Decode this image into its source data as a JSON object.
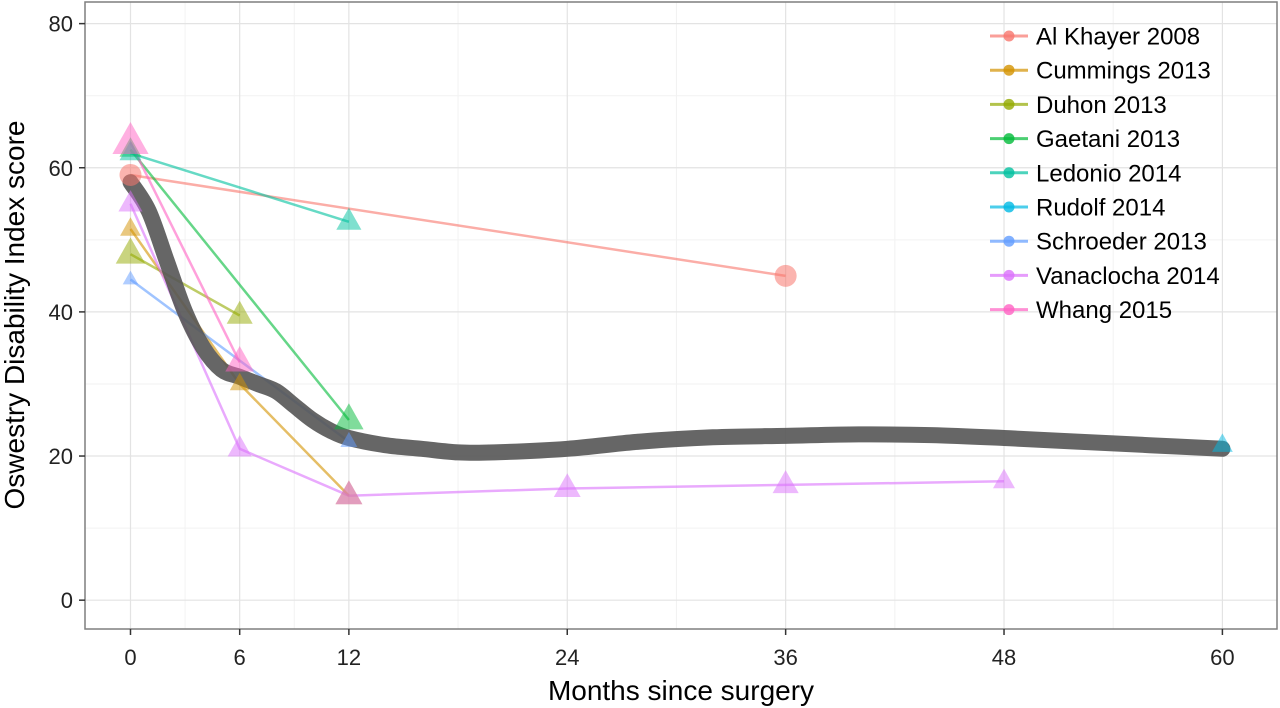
{
  "chart_data": {
    "type": "line",
    "title": "",
    "xlabel": "Months since surgery",
    "ylabel": "Oswestry Disability Index score",
    "xlim": [
      -2.5,
      63
    ],
    "ylim": [
      -4,
      83
    ],
    "x_ticks": [
      0,
      6,
      12,
      24,
      36,
      48,
      60
    ],
    "y_ticks": [
      0,
      20,
      40,
      60,
      80
    ],
    "grid": true,
    "legend_position": "top-right",
    "series": [
      {
        "name": "Al Khayer 2008",
        "color": "#f8766d",
        "marker": "circle",
        "points": [
          {
            "x": 0,
            "y": 59,
            "n": 1.0
          },
          {
            "x": 36,
            "y": 45,
            "n": 1.0
          }
        ]
      },
      {
        "name": "Cummings 2013",
        "color": "#d39200",
        "marker": "triangle",
        "points": [
          {
            "x": 0,
            "y": 51.5,
            "n": 0.9
          },
          {
            "x": 6,
            "y": 30,
            "n": 0.8
          },
          {
            "x": 12,
            "y": 14.5,
            "n": 1.5
          }
        ]
      },
      {
        "name": "Duhon 2013",
        "color": "#93aa00",
        "marker": "triangle",
        "points": [
          {
            "x": 0,
            "y": 48,
            "n": 1.8
          },
          {
            "x": 6,
            "y": 39.5,
            "n": 1.4
          }
        ]
      },
      {
        "name": "Gaetani 2013",
        "color": "#00ba38",
        "marker": "triangle",
        "points": [
          {
            "x": 0,
            "y": 62.5,
            "n": 1.0
          },
          {
            "x": 12,
            "y": 25,
            "n": 1.8
          }
        ]
      },
      {
        "name": "Ledonio 2014",
        "color": "#00c19f",
        "marker": "triangle",
        "points": [
          {
            "x": 0,
            "y": 62,
            "n": 1.0
          },
          {
            "x": 12,
            "y": 52.5,
            "n": 1.3
          }
        ]
      },
      {
        "name": "Rudolf 2014",
        "color": "#00b9e3",
        "marker": "triangle",
        "points": [
          {
            "x": 60,
            "y": 21.5,
            "n": 0.9
          }
        ]
      },
      {
        "name": "Schroeder 2013",
        "color": "#619cff",
        "marker": "triangle",
        "points": [
          {
            "x": 0,
            "y": 44.5,
            "n": 0.5
          },
          {
            "x": 12,
            "y": 22,
            "n": 0.6
          }
        ]
      },
      {
        "name": "Vanaclocha 2014",
        "color": "#db72fb",
        "marker": "triangle",
        "points": [
          {
            "x": 0,
            "y": 55,
            "n": 1.2
          },
          {
            "x": 6,
            "y": 21,
            "n": 1.2
          },
          {
            "x": 12,
            "y": 14.5,
            "n": 1.5
          },
          {
            "x": 24,
            "y": 15.5,
            "n": 1.5
          },
          {
            "x": 36,
            "y": 16,
            "n": 1.4
          },
          {
            "x": 48,
            "y": 16.5,
            "n": 1.0
          }
        ]
      },
      {
        "name": "Whang 2015",
        "color": "#ff61c3",
        "marker": "triangle",
        "points": [
          {
            "x": 0,
            "y": 63.5,
            "n": 2.7
          },
          {
            "x": 6,
            "y": 33,
            "n": 1.7
          }
        ]
      }
    ],
    "pooled_trend": {
      "color": "#555555",
      "x": [
        0,
        1,
        2,
        3,
        4,
        5,
        6,
        7,
        8,
        9,
        10,
        11,
        12,
        14,
        16,
        18,
        20,
        24,
        28,
        32,
        36,
        40,
        44,
        48,
        52,
        56,
        60
      ],
      "y": [
        58,
        54,
        47,
        40,
        35,
        32,
        31,
        30,
        29,
        27,
        25,
        23.5,
        22.5,
        21.5,
        21,
        20.5,
        20.5,
        21,
        22,
        22.6,
        22.8,
        23,
        22.9,
        22.5,
        22,
        21.5,
        21
      ]
    }
  }
}
